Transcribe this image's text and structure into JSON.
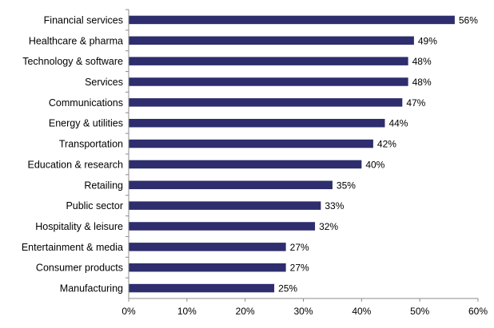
{
  "chart_data": {
    "type": "bar",
    "orientation": "horizontal",
    "categories": [
      "Financial services",
      "Healthcare & pharma",
      "Technology & software",
      "Services",
      "Communications",
      "Energy & utilities",
      "Transportation",
      "Education & research",
      "Retailing",
      "Public sector",
      "Hospitality & leisure",
      "Entertainment & media",
      "Consumer products",
      "Manufacturing"
    ],
    "values": [
      56,
      49,
      48,
      48,
      47,
      44,
      42,
      40,
      35,
      33,
      32,
      27,
      27,
      25
    ],
    "value_labels": [
      "56%",
      "49%",
      "48%",
      "48%",
      "47%",
      "44%",
      "42%",
      "40%",
      "35%",
      "33%",
      "32%",
      "27%",
      "27%",
      "25%"
    ],
    "x_ticks": [
      "0%",
      "10%",
      "20%",
      "30%",
      "40%",
      "50%",
      "60%"
    ],
    "xlim": [
      0,
      60
    ],
    "title": "",
    "xlabel": "",
    "ylabel": "",
    "grid": false,
    "bar_color": "#2e2d6e"
  }
}
